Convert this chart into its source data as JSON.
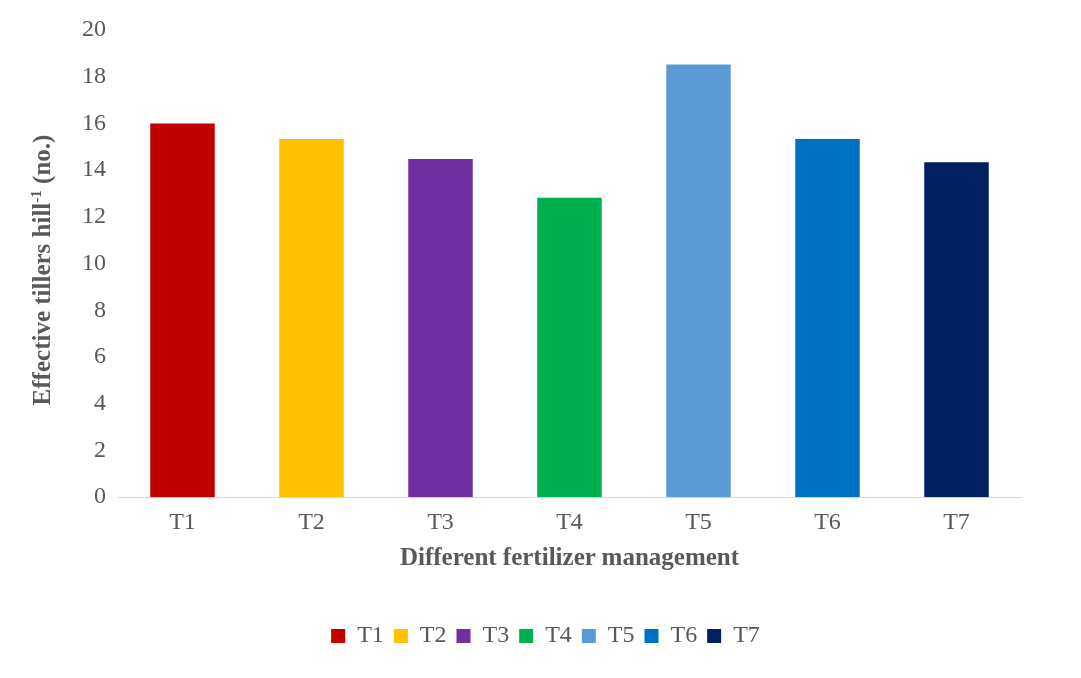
{
  "chart_data": {
    "type": "bar",
    "xlabel": "Different fertilizer management",
    "ylabel": "Effective tillers hill$^{-1}$ (no.)",
    "categories": [
      "T1",
      "T2",
      "T3",
      "T4",
      "T5",
      "T6",
      "T7"
    ],
    "series": [
      {
        "name": "T1",
        "color": "#c00000",
        "values": [
          16.0,
          null,
          null,
          null,
          null,
          null,
          null
        ]
      },
      {
        "name": "T2",
        "color": "#ffc000",
        "values": [
          null,
          15.33,
          null,
          null,
          null,
          null,
          null
        ]
      },
      {
        "name": "T3",
        "color": "#7030a0",
        "values": [
          null,
          null,
          14.48,
          null,
          null,
          null,
          null
        ]
      },
      {
        "name": "T4",
        "color": "#00b050",
        "values": [
          null,
          null,
          null,
          12.82,
          null,
          null,
          null
        ]
      },
      {
        "name": "T5",
        "color": "#5b9bd5",
        "values": [
          null,
          null,
          null,
          null,
          18.52,
          null,
          null
        ]
      },
      {
        "name": "T6",
        "color": "#0070c0",
        "values": [
          null,
          null,
          null,
          null,
          null,
          15.33,
          null
        ]
      },
      {
        "name": "T7",
        "color": "#002060",
        "values": [
          null,
          null,
          null,
          null,
          null,
          null,
          14.34
        ]
      }
    ],
    "ylim": [
      0,
      20
    ],
    "yticks": [
      0,
      2,
      4,
      6,
      8,
      10,
      12,
      14,
      16,
      18,
      20
    ],
    "grid": false,
    "legend": "bottom"
  }
}
